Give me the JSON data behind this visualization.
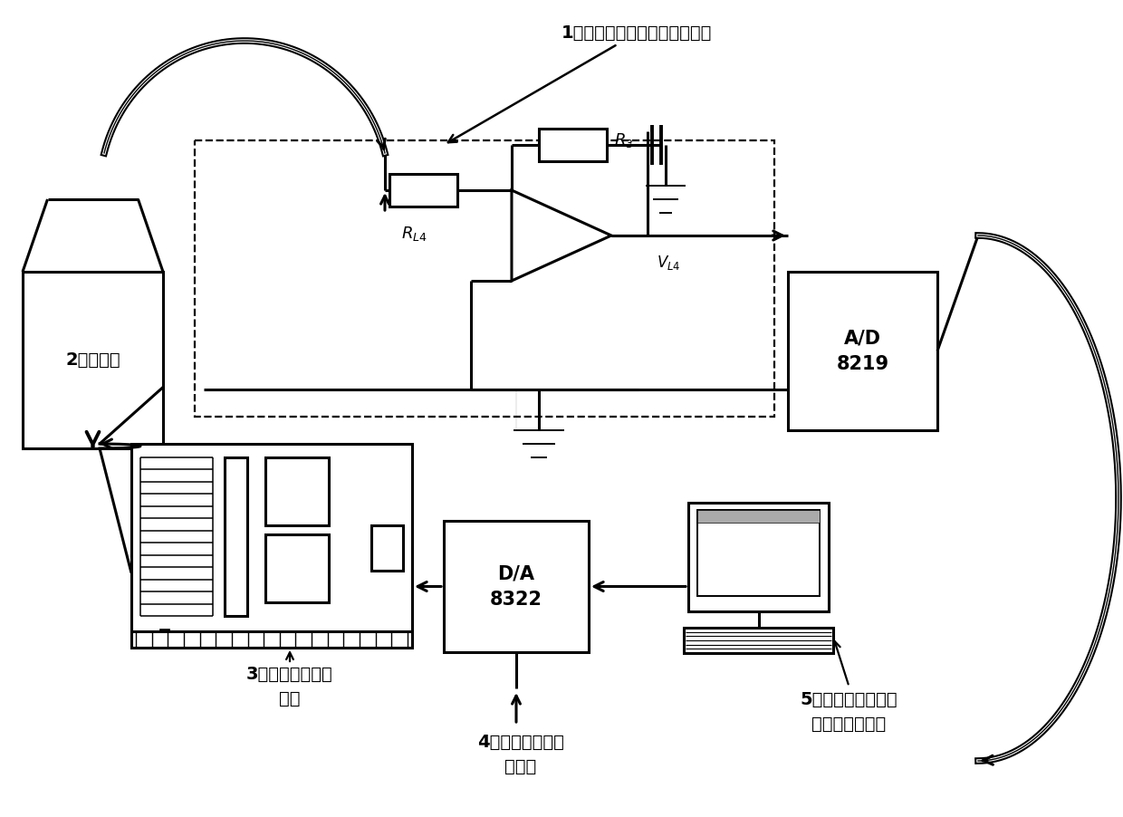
{
  "bg": "#ffffff",
  "ann1": "1、基于传感器阵列的检测电路",
  "ann2": "2、测试腔",
  "ann3": "3、动态配气扫气\n装置",
  "ann4": "4、信号采集及处\n理电路",
  "ann5": "5、测试系统上位机\n控制及分析软件",
  "ad": "A/D\n8219",
  "da": "D/A\n8322"
}
